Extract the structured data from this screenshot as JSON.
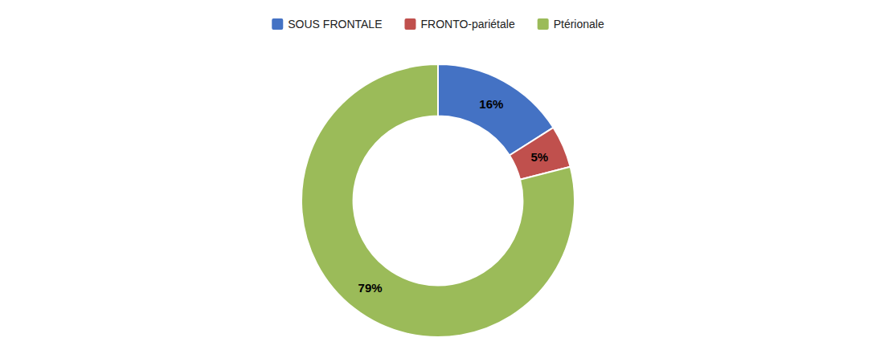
{
  "chart_data": {
    "type": "donut",
    "categories": [
      "SOUS FRONTALE",
      "FRONTO-pariétale",
      "Ptérionale"
    ],
    "values": [
      16,
      5,
      79
    ],
    "value_labels": [
      "16%",
      "5%",
      "79%"
    ],
    "colors": [
      "#4472C4",
      "#C0504D",
      "#9BBB59"
    ],
    "data_labels": true,
    "legend": "top"
  }
}
